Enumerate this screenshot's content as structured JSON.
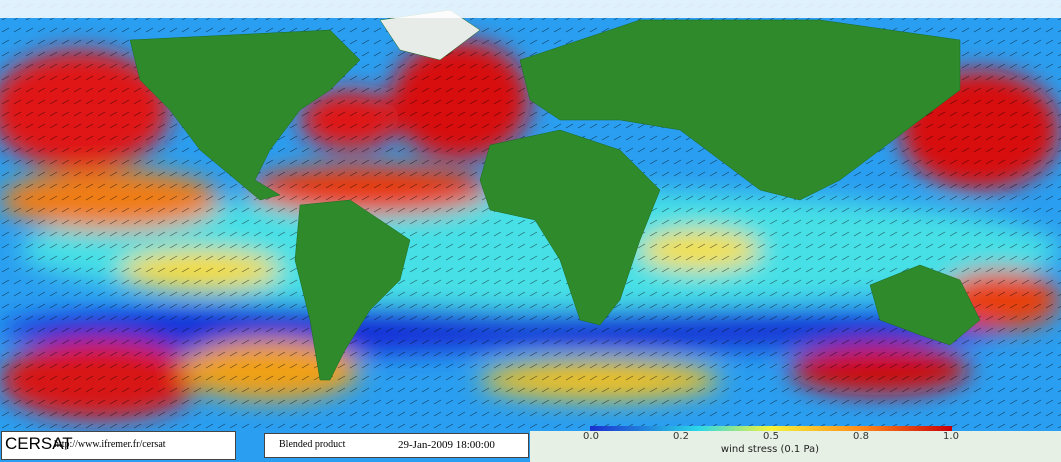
{
  "header": {
    "logo": "CERSAT",
    "url": "http://www.ifremer.fr/cersat"
  },
  "product": {
    "name": "Blended product",
    "date": "29-Jan-2009 18:00:00"
  },
  "colorbar": {
    "ticks": [
      "0.0",
      "0.2",
      "0.5",
      "0.8",
      "1.0"
    ],
    "title": "wind stress (0.1 Pa)"
  }
}
